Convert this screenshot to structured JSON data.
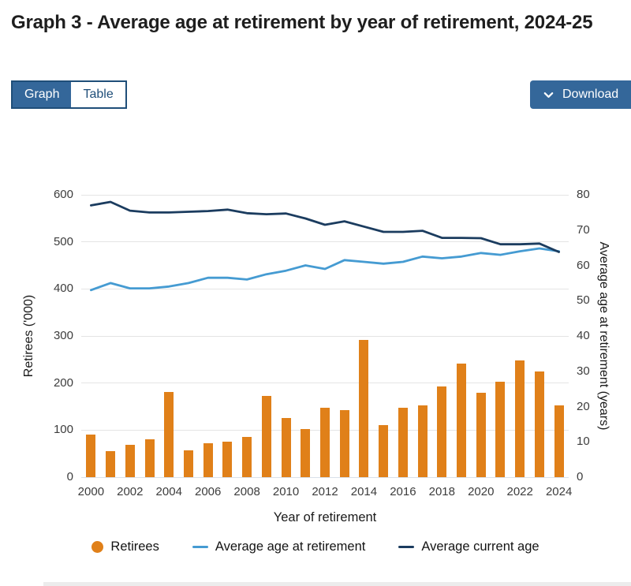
{
  "page": {
    "title": "Graph 3 - Average age at retirement by year of retirement, 2024-25"
  },
  "toolbar": {
    "view_toggle": [
      {
        "label": "Graph",
        "selected": true
      },
      {
        "label": "Table",
        "selected": false
      }
    ],
    "download_label": "Download"
  },
  "colors": {
    "bar_orange": "#e08019",
    "line_light_blue": "#459bd2",
    "line_dark_blue": "#1b3c5f",
    "button_blue": "#34679a",
    "button_border": "#1f4e79"
  },
  "chart_data": {
    "type": "bar",
    "subtype": "combo bar+line, dual axis",
    "title": "Graph 3 - Average age at retirement by year of retirement, 2024-25",
    "x": [
      2000,
      2001,
      2002,
      2003,
      2004,
      2005,
      2006,
      2007,
      2008,
      2009,
      2010,
      2011,
      2012,
      2013,
      2014,
      2015,
      2016,
      2017,
      2018,
      2019,
      2020,
      2021,
      2022,
      2023,
      2024
    ],
    "x_tick_labels": [
      "2000",
      "2002",
      "2004",
      "2006",
      "2008",
      "2010",
      "2012",
      "2014",
      "2016",
      "2018",
      "2020",
      "2022",
      "2024"
    ],
    "xlabel": "Year of retirement",
    "left_axis": {
      "label": "Retirees ('000)",
      "range": [
        0,
        600
      ],
      "ticks": [
        600,
        500,
        400,
        300,
        200,
        100,
        0
      ]
    },
    "right_axis": {
      "label": "Average age at retirement (years)",
      "range": [
        0,
        80
      ],
      "ticks": [
        80,
        70,
        60,
        50,
        40,
        30,
        20,
        10,
        0
      ]
    },
    "grid": "horizontal gridlines on",
    "legend_position": "bottom",
    "series": [
      {
        "name": "Retirees",
        "type": "bar",
        "axis": "left",
        "color": "#e08019",
        "values": [
          91,
          55,
          68,
          80,
          181,
          57,
          72,
          76,
          85,
          173,
          125,
          102,
          147,
          142,
          291,
          111,
          147,
          152,
          192,
          242,
          179,
          203,
          248,
          224,
          153
        ]
      },
      {
        "name": "Average age at retirement",
        "type": "line",
        "axis": "right",
        "color": "#459bd2",
        "values": [
          53,
          55,
          53.5,
          53.5,
          54,
          55,
          56.5,
          56.5,
          56,
          57.5,
          58.5,
          60,
          59,
          61.5,
          61,
          60.5,
          61,
          62.5,
          62,
          62.5,
          63.5,
          63,
          64,
          64.8,
          64
        ]
      },
      {
        "name": "Average current age",
        "type": "line",
        "axis": "right",
        "color": "#1b3c5f",
        "values": [
          77,
          78,
          75.5,
          75,
          75,
          75.2,
          75.4,
          75.8,
          74.8,
          74.5,
          74.7,
          73.3,
          71.5,
          72.5,
          71,
          69.5,
          69.5,
          69.8,
          67.8,
          67.8,
          67.7,
          66,
          66,
          66.2,
          63.8
        ]
      }
    ]
  }
}
